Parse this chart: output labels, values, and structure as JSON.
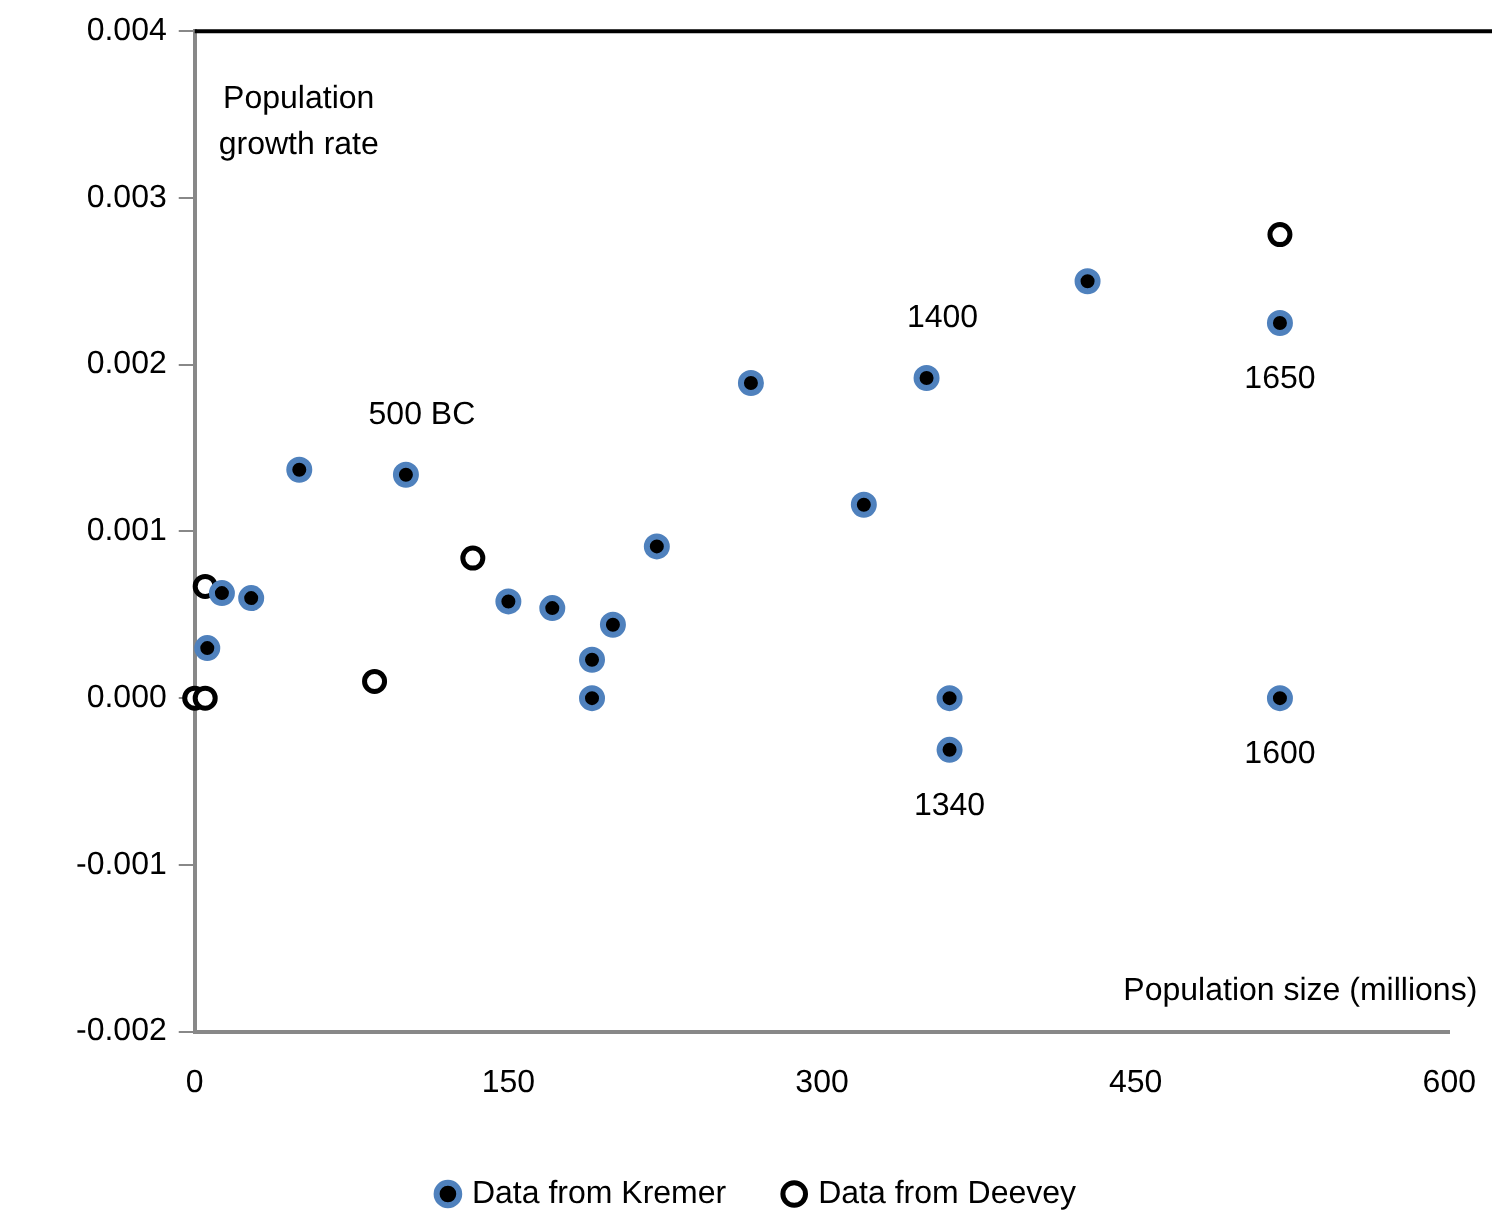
{
  "chart_data": {
    "type": "scatter",
    "xlabel": "Population size (millions)",
    "ylabel": "Population growth rate",
    "xlim": [
      0,
      600
    ],
    "xticks": [
      0,
      150,
      300,
      450,
      600
    ],
    "ylim": [
      -0.002,
      0.004
    ],
    "yticks": [
      {
        "value": -0.002,
        "label": "-0.002"
      },
      {
        "value": -0.001,
        "label": "-0.001"
      },
      {
        "value": 0,
        "label": "0.000"
      },
      {
        "value": 0.001,
        "label": "0.001"
      },
      {
        "value": 0.002,
        "label": "0.002"
      },
      {
        "value": 0.003,
        "label": "0.003"
      },
      {
        "value": 0.004,
        "label": "0.004"
      }
    ],
    "grid": false,
    "legend": "bottom",
    "marker": "circle",
    "series": [
      {
        "name": "Data from Kremer",
        "color": "#4f81bd",
        "x": [
          6,
          13,
          27,
          50,
          101,
          150,
          171,
          190,
          190,
          200,
          221,
          266,
          320,
          350,
          361,
          361,
          427,
          519,
          519
        ],
        "values": [
          0.0003,
          0.00063,
          0.0006,
          0.00137,
          0.00134,
          0.00058,
          0.00054,
          0.00023,
          0,
          0.00044,
          0.00091,
          0.00189,
          0.00116,
          0.00192,
          0,
          -0.00031,
          0.0025,
          0.00225,
          0
        ]
      },
      {
        "name": "Data from Deevey",
        "color": "#000000",
        "x": [
          0,
          5,
          5,
          86,
          133,
          519
        ],
        "values": [
          0,
          0,
          0.00067,
          0.0001,
          0.00084,
          0.00278
        ]
      }
    ],
    "annotations": [
      {
        "text": "500 BC",
        "x": 101,
        "y": 0.00134
      },
      {
        "text": "1400",
        "x": 350,
        "y": 0.00192
      },
      {
        "text": "1650",
        "x": 519,
        "y": 0.00225
      },
      {
        "text": "1600",
        "x": 519,
        "y": 0
      },
      {
        "text": "1340",
        "x": 361,
        "y": -0.00031
      }
    ]
  }
}
